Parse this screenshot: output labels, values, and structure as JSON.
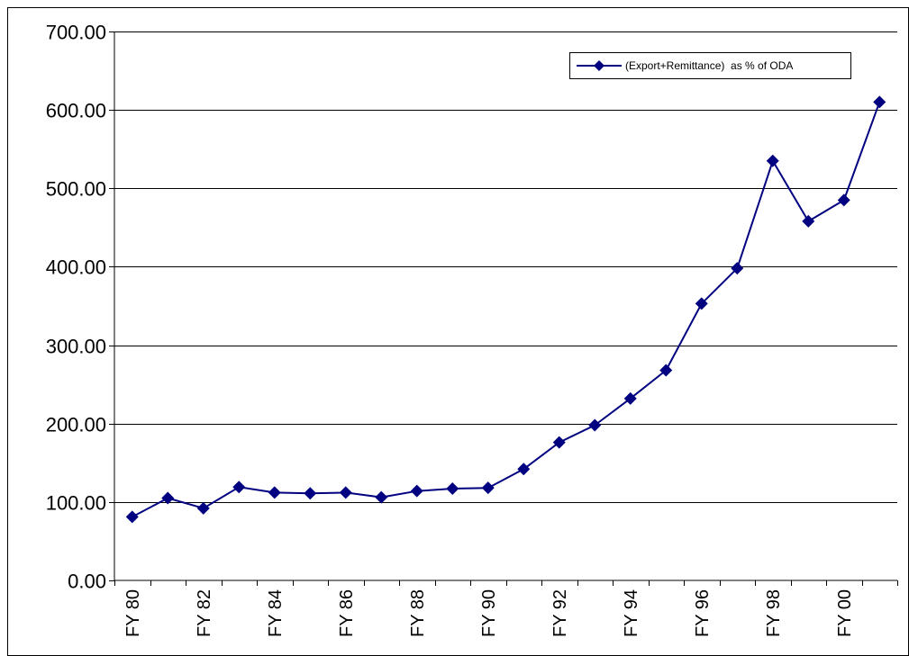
{
  "chart_data": {
    "type": "line",
    "title": "",
    "xlabel": "",
    "ylabel": "",
    "x_tick_labels": [
      "FY 80",
      "FY 82",
      "FY 84",
      "FY 86",
      "FY 88",
      "FY 90",
      "FY 92",
      "FY 94",
      "FY 96",
      "FY 98",
      "FY 00"
    ],
    "y_tick_labels": [
      "0.00",
      "100.00",
      "200.00",
      "300.00",
      "400.00",
      "500.00",
      "600.00",
      "700.00"
    ],
    "ylim": [
      0,
      700
    ],
    "y_major_step": 100,
    "grid": "horizontal",
    "legend_position": "top-right",
    "series": [
      {
        "name": "(Export+Remittance)  as % of ODA",
        "color": "#000080",
        "marker": "diamond",
        "categories": [
          "FY 80",
          "FY 81",
          "FY 82",
          "FY 83",
          "FY 84",
          "FY 85",
          "FY 86",
          "FY 87",
          "FY 88",
          "FY 89",
          "FY 90",
          "FY 91",
          "FY 92",
          "FY 93",
          "FY 94",
          "FY 95",
          "FY 96",
          "FY 97",
          "FY 98",
          "FY 99",
          "FY 00",
          "FY 01"
        ],
        "values": [
          81,
          105,
          92,
          119,
          112,
          111,
          112,
          106,
          114,
          117,
          118,
          142,
          176,
          198,
          232,
          268,
          353,
          398,
          535,
          458,
          485,
          610
        ]
      }
    ]
  }
}
